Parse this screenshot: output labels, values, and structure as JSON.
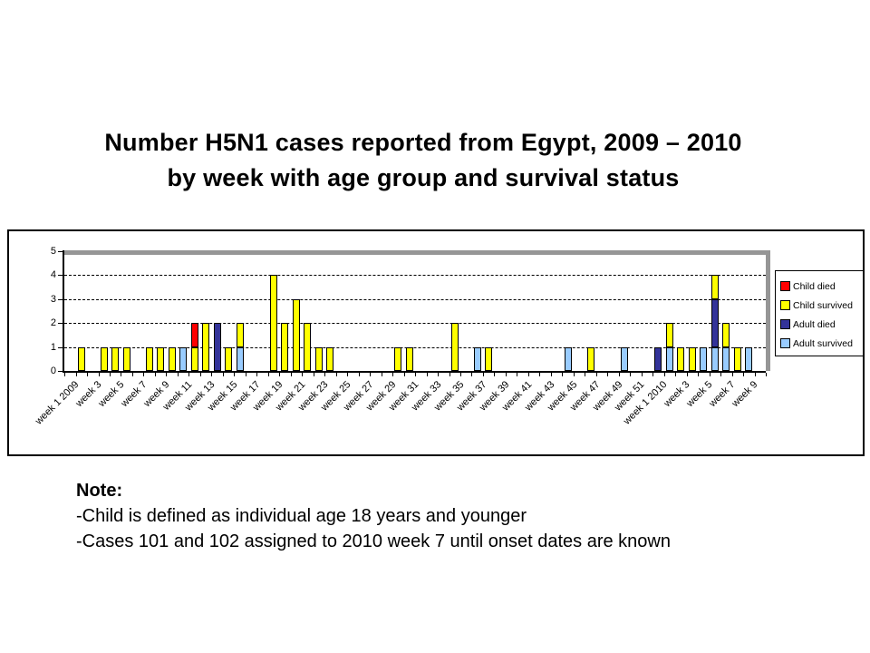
{
  "title": {
    "line1": "Number H5N1 cases reported from Egypt, 2009 – 2010",
    "line2": "by week with age group and survival status"
  },
  "note": {
    "heading": "Note:",
    "lines": [
      "-Child is defined as individual age 18 years and younger",
      "-Cases 101 and 102 assigned to 2010 week 7 until onset dates are known"
    ]
  },
  "chart_data": {
    "type": "bar",
    "stacked": true,
    "title": "Number H5N1 cases reported from Egypt, 2009 – 2010 by week with age group and survival status",
    "xlabel": "",
    "ylabel": "",
    "ylim": [
      0,
      5
    ],
    "yticks": [
      0,
      1,
      2,
      3,
      4,
      5
    ],
    "gridlines": [
      1,
      2,
      3,
      4
    ],
    "grid": "horizontal-dashed",
    "legend_position": "right",
    "categories": [
      "week 1 2009",
      "",
      "week 3",
      "",
      "week 5",
      "",
      "week 7",
      "",
      "week 9",
      "",
      "week 11",
      "",
      "week 13",
      "",
      "week 15",
      "",
      "week 17",
      "",
      "week 19",
      "",
      "week 21",
      "",
      "week 23",
      "",
      "week 25",
      "",
      "week 27",
      "",
      "week 29",
      "",
      "week 31",
      "",
      "week 33",
      "",
      "week 35",
      "",
      "week 37",
      "",
      "week 39",
      "",
      "week 41",
      "",
      "week 43",
      "",
      "week 45",
      "",
      "week 47",
      "",
      "week 49",
      "",
      "week 51",
      "",
      "week 1 2010",
      "",
      "week 3",
      "",
      "week 5",
      "",
      "week 7",
      "",
      "week 9",
      ""
    ],
    "series": [
      {
        "name": "Child died",
        "color": "#FF0000",
        "values": [
          0,
          0,
          0,
          0,
          0,
          0,
          0,
          0,
          0,
          0,
          0,
          1,
          0,
          0,
          0,
          0,
          0,
          0,
          0,
          0,
          0,
          0,
          0,
          0,
          0,
          0,
          0,
          0,
          0,
          0,
          0,
          0,
          0,
          0,
          0,
          0,
          0,
          0,
          0,
          0,
          0,
          0,
          0,
          0,
          0,
          0,
          0,
          0,
          0,
          0,
          0,
          0,
          0,
          0,
          0,
          0,
          0,
          0,
          0,
          0,
          0,
          0
        ]
      },
      {
        "name": "Child survived",
        "color": "#FFFF00",
        "values": [
          0,
          1,
          0,
          1,
          1,
          1,
          0,
          1,
          1,
          1,
          0,
          1,
          2,
          0,
          1,
          1,
          0,
          0,
          4,
          2,
          3,
          2,
          1,
          1,
          0,
          0,
          0,
          0,
          0,
          1,
          1,
          0,
          0,
          0,
          2,
          0,
          0,
          1,
          0,
          0,
          0,
          0,
          0,
          0,
          0,
          0,
          1,
          0,
          0,
          0,
          0,
          0,
          0,
          1,
          1,
          1,
          0,
          1,
          1,
          1,
          0,
          0
        ]
      },
      {
        "name": "Adult died",
        "color": "#333399",
        "values": [
          0,
          0,
          0,
          0,
          0,
          0,
          0,
          0,
          0,
          0,
          0,
          0,
          0,
          2,
          0,
          0,
          0,
          0,
          0,
          0,
          0,
          0,
          0,
          0,
          0,
          0,
          0,
          0,
          0,
          0,
          0,
          0,
          0,
          0,
          0,
          0,
          0,
          0,
          0,
          0,
          0,
          0,
          0,
          0,
          0,
          0,
          0,
          0,
          0,
          0,
          0,
          0,
          1,
          0,
          0,
          0,
          0,
          2,
          0,
          0,
          0,
          0
        ]
      },
      {
        "name": "Adult survived",
        "color": "#99CCFF",
        "values": [
          0,
          0,
          0,
          0,
          0,
          0,
          0,
          0,
          0,
          0,
          1,
          0,
          0,
          0,
          0,
          1,
          0,
          0,
          0,
          0,
          0,
          0,
          0,
          0,
          0,
          0,
          0,
          0,
          0,
          0,
          0,
          0,
          0,
          0,
          0,
          0,
          1,
          0,
          0,
          0,
          0,
          0,
          0,
          0,
          1,
          0,
          0,
          0,
          0,
          1,
          0,
          0,
          0,
          1,
          0,
          0,
          1,
          1,
          1,
          0,
          1,
          0
        ]
      }
    ],
    "stack_order_bottom_to_top": [
      "Adult survived",
      "Adult died",
      "Child survived",
      "Child died"
    ]
  }
}
